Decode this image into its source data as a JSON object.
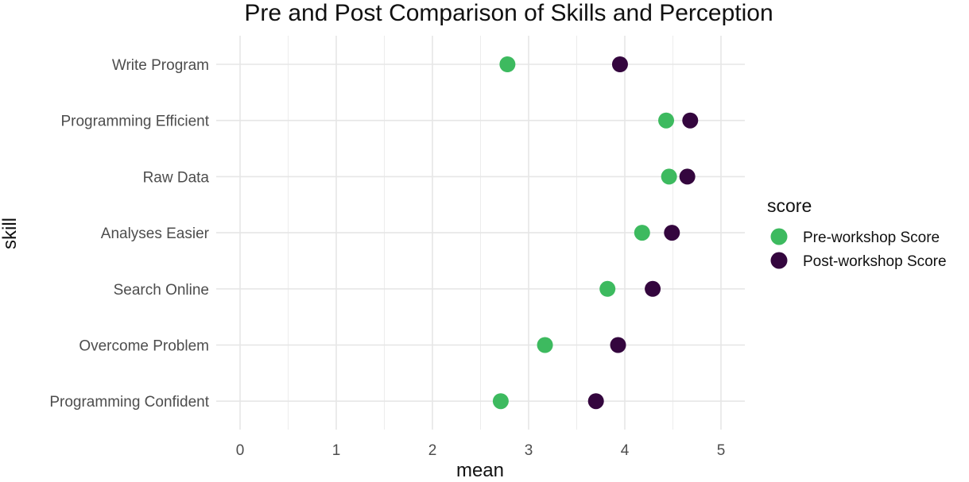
{
  "chart_data": {
    "type": "scatter",
    "title": "Pre and Post Comparison of Skills and Perception",
    "xlabel": "mean",
    "ylabel": "skill",
    "xlim": [
      -0.25,
      5.25
    ],
    "x_ticks": [
      0,
      1,
      2,
      3,
      4,
      5
    ],
    "x_tick_labels": [
      "0",
      "1",
      "2",
      "3",
      "4",
      "5"
    ],
    "categories": [
      "Write Program",
      "Programming Efficient",
      "Raw Data",
      "Analyses Easier",
      "Search Online",
      "Overcome Problem",
      "Programming Confident"
    ],
    "series": [
      {
        "name": "Pre-workshop Score",
        "color": "#3dba5f",
        "values": [
          2.78,
          4.43,
          4.46,
          4.18,
          3.82,
          3.17,
          2.71
        ]
      },
      {
        "name": "Post-workshop Score",
        "color": "#34063e",
        "values": [
          3.95,
          4.68,
          4.65,
          4.49,
          4.29,
          3.93,
          3.7
        ]
      }
    ],
    "legend": {
      "title": "score",
      "position": "right"
    },
    "grid": true
  }
}
